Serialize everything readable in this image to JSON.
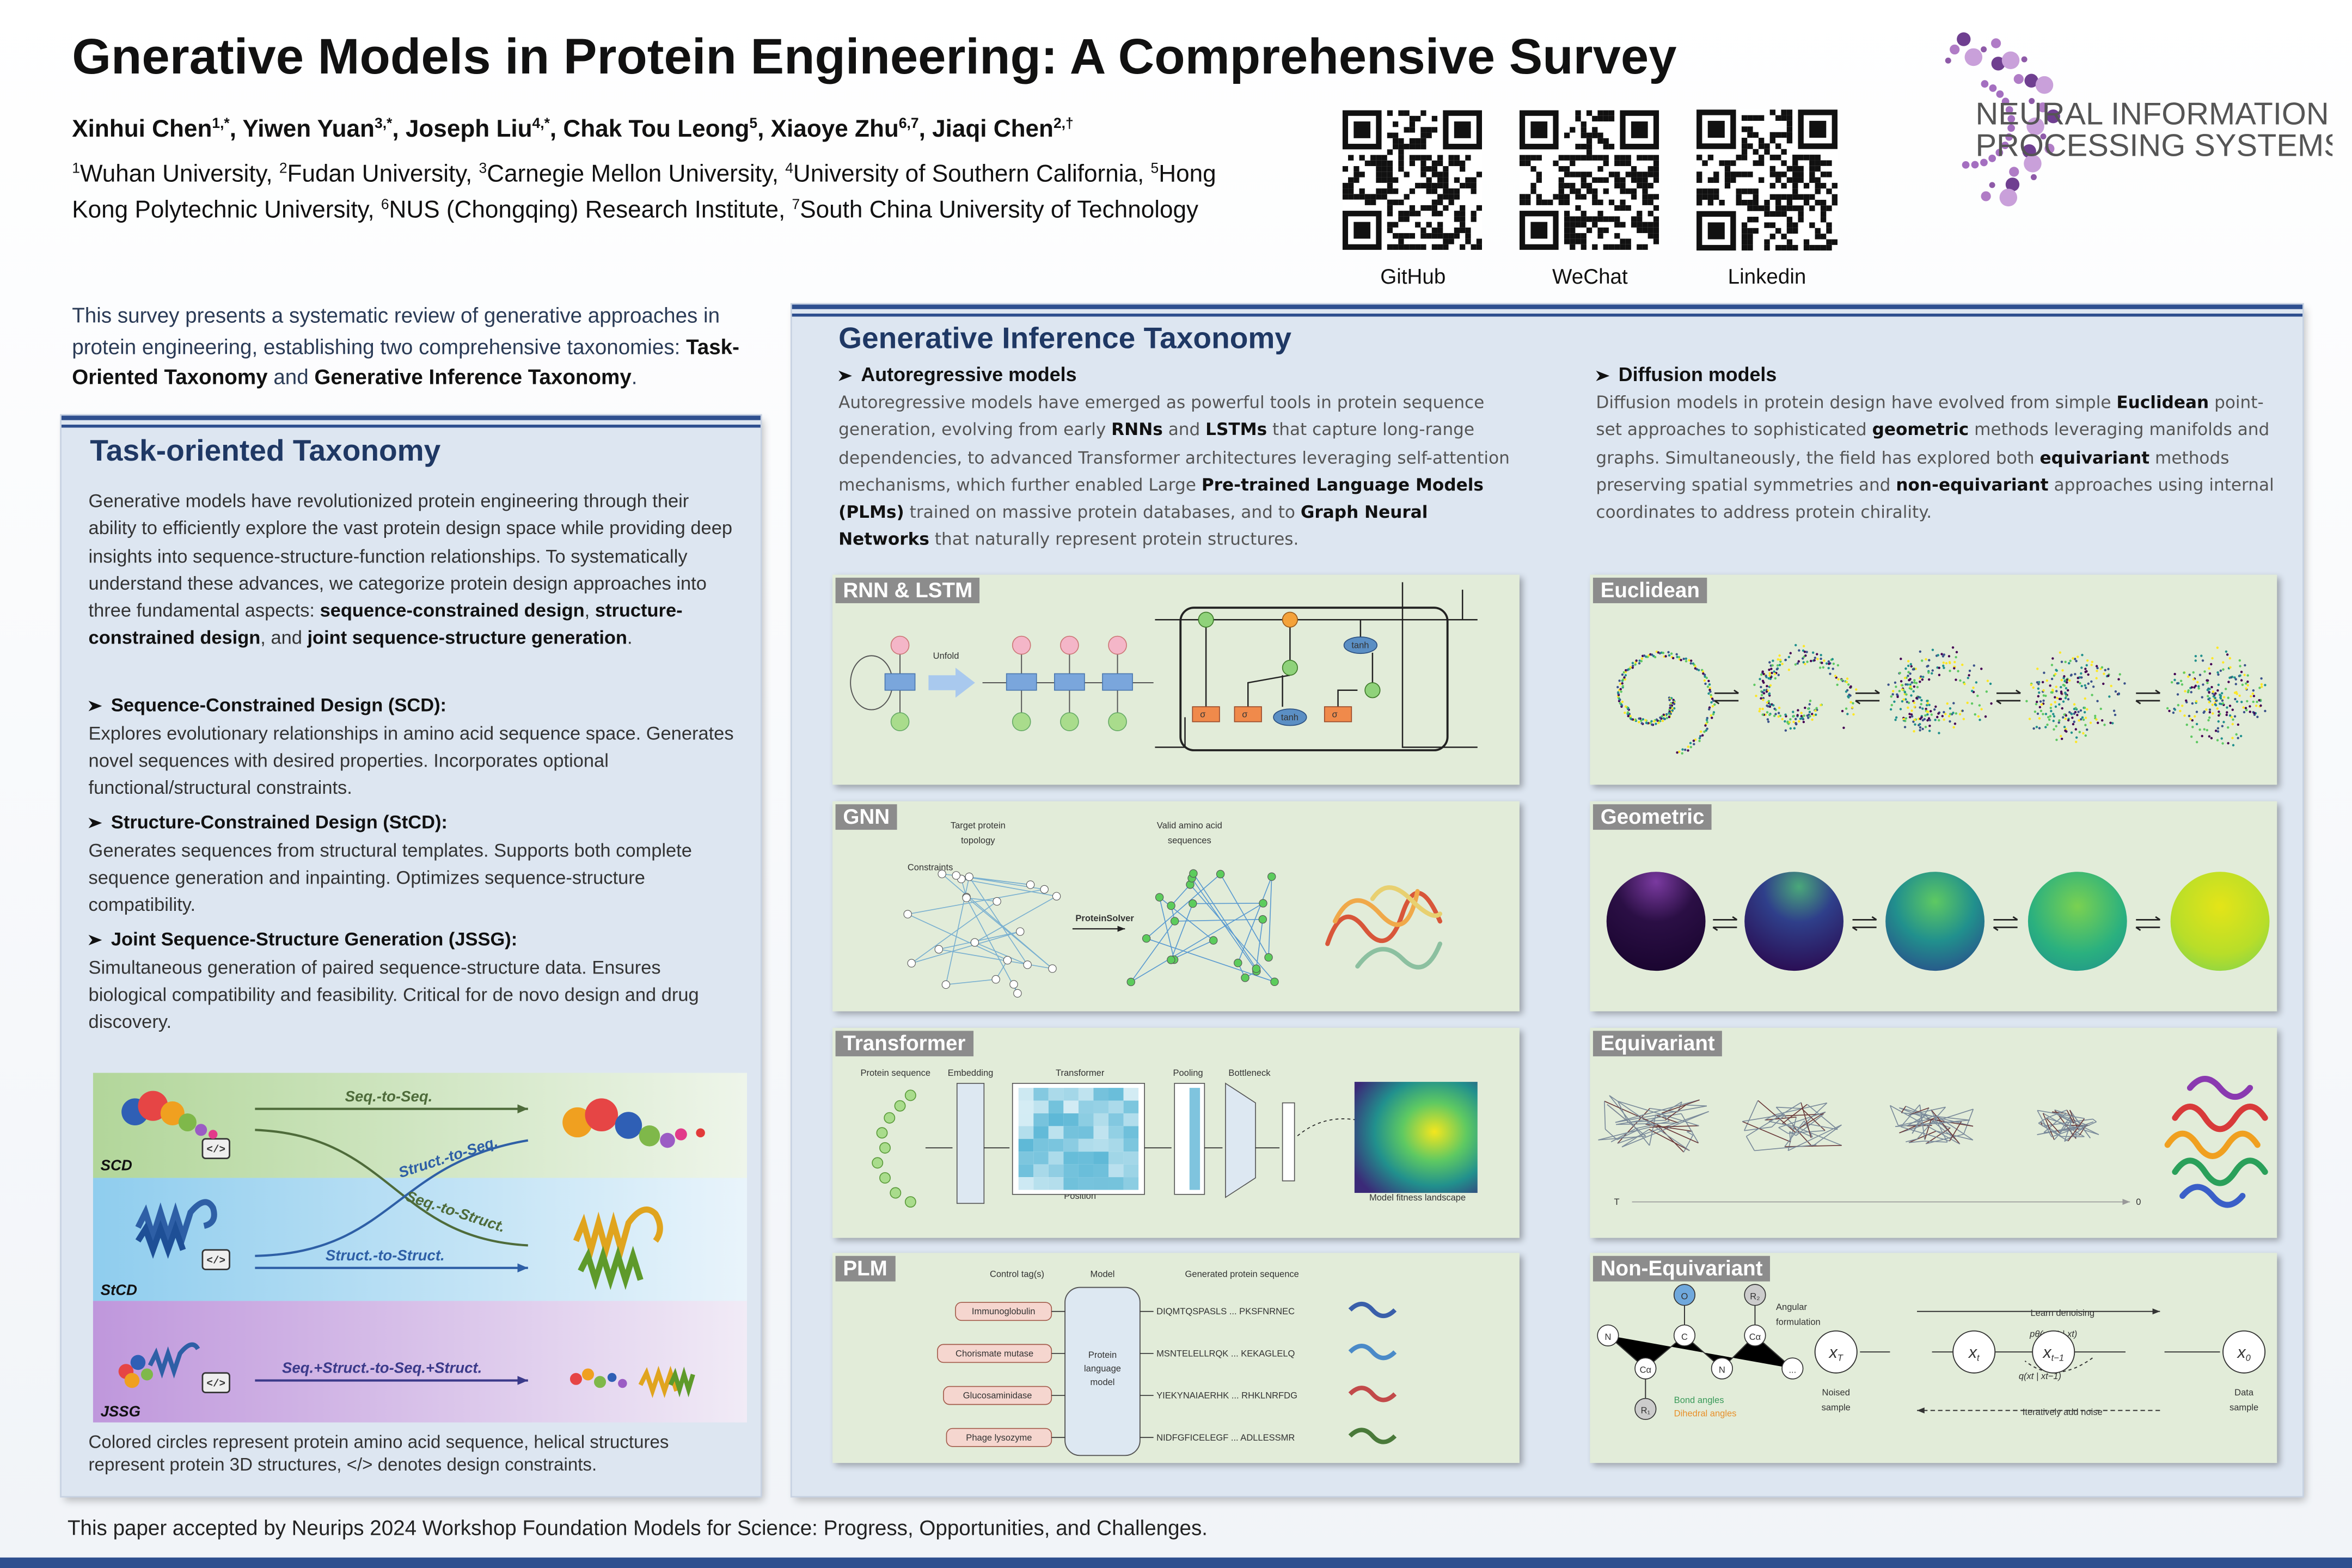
{
  "header": {
    "title": "Gnerative Models in Protein Engineering: A Comprehensive Survey",
    "authors": [
      {
        "t": "Xinhui Chen"
      },
      {
        "t": "1,*",
        "sup": true
      },
      {
        "t": ", Yiwen Yuan"
      },
      {
        "t": "3,*",
        "sup": true
      },
      {
        "t": ", Joseph Liu"
      },
      {
        "t": "4,*",
        "sup": true
      },
      {
        "t": ", Chak Tou Leong"
      },
      {
        "t": "5",
        "sup": true
      },
      {
        "t": ", Xiaoye Zhu"
      },
      {
        "t": "6,7",
        "sup": true
      },
      {
        "t": ", Jiaqi Chen"
      },
      {
        "t": "2,†",
        "sup": true
      }
    ],
    "affiliations": [
      {
        "t": "1",
        "sup": true
      },
      {
        "t": "Wuhan University, "
      },
      {
        "t": "2",
        "sup": true
      },
      {
        "t": "Fudan University, "
      },
      {
        "t": "3",
        "sup": true
      },
      {
        "t": "Carnegie Mellon University, "
      },
      {
        "t": "4",
        "sup": true
      },
      {
        "t": "University of Southern California, "
      },
      {
        "t": "5",
        "sup": true
      },
      {
        "t": "Hong Kong Polytechnic University, "
      },
      {
        "t": "6",
        "sup": true
      },
      {
        "t": "NUS (Chongqing) Research Institute, "
      },
      {
        "t": "7",
        "sup": true
      },
      {
        "t": "South China University of Technology"
      }
    ]
  },
  "qr_codes": [
    {
      "label": "GitHub"
    },
    {
      "label": "WeChat"
    },
    {
      "label": "Linkedin"
    }
  ],
  "logo": {
    "line1": "NEURAL INFORMATION",
    "line2": "PROCESSING SYSTEMS"
  },
  "intro": [
    {
      "t": "This survey presents a systematic review of generative approaches in protein engineering, establishing two comprehensive taxonomies: "
    },
    {
      "t": "Task-Oriented Taxonomy",
      "b": true
    },
    {
      "t": " and "
    },
    {
      "t": "Generative Inference Taxonomy",
      "b": true
    },
    {
      "t": "."
    }
  ],
  "task_panel": {
    "title": "Task-oriented Taxonomy",
    "body": [
      {
        "t": "Generative models have revolutionized protein engineering through their ability to efficiently explore the vast protein design space while providing deep insights into sequence-structure-function relationships. To systematically understand these advances, we categorize protein design approaches into three fundamental aspects: "
      },
      {
        "t": "sequence-constrained design",
        "b": true
      },
      {
        "t": ", "
      },
      {
        "t": "structure-constrained design",
        "b": true
      },
      {
        "t": ", and "
      },
      {
        "t": "joint sequence-structure generation",
        "b": true
      },
      {
        "t": "."
      }
    ],
    "items": [
      {
        "heading": "Sequence-Constrained Design (SCD):",
        "text": "Explores evolutionary relationships in amino acid sequence space. Generates novel sequences with desired properties. Incorporates optional functional/structural constraints."
      },
      {
        "heading": "Structure-Constrained Design (StCD):",
        "text": "Generates sequences from structural templates. Supports both complete sequence generation and inpainting. Optimizes sequence-structure compatibility."
      },
      {
        "heading": "Joint Sequence-Structure Generation (JSSG):",
        "text": "Simultaneous generation of paired sequence-structure data. Ensures biological compatibility and feasibility. Critical for de novo design and drug discovery."
      }
    ],
    "figure": {
      "rows": [
        "SCD",
        "StCD",
        "JSSG"
      ],
      "icon": "</>",
      "arrows": [
        "Seq.-to-Seq.",
        "Struct.-to-Seq.",
        "Seq.-to-Struct.",
        "Struct.-to-Struct.",
        "Seq.+Struct.-to-Seq.+Struct."
      ]
    },
    "caption": "Colored circles represent protein amino acid sequence, helical structures represent protein 3D structures, </> denotes design constraints."
  },
  "inference_panel": {
    "title": "Generative Inference Taxonomy",
    "columns": [
      {
        "heading": "Autoregressive models",
        "body": [
          {
            "t": "Autoregressive models have emerged as powerful tools in protein sequence generation, evolving from early "
          },
          {
            "t": "RNNs",
            "b": true
          },
          {
            "t": " and "
          },
          {
            "t": "LSTMs",
            "b": true
          },
          {
            "t": " that capture long-range dependencies, to advanced Transformer architectures leveraging self-attention mechanisms, which further enabled Large "
          },
          {
            "t": "Pre-trained Language Models (PLMs)",
            "b": true
          },
          {
            "t": " trained on massive protein databases, and to "
          },
          {
            "t": "Graph Neural Networks",
            "b": true
          },
          {
            "t": " that naturally represent protein structures."
          }
        ]
      },
      {
        "heading": "Diffusion models",
        "body": [
          {
            "t": "Diffusion models in protein design have evolved from simple "
          },
          {
            "t": "Euclidean",
            "b": true
          },
          {
            "t": " point-set approaches to sophisticated "
          },
          {
            "t": "geometric",
            "b": true
          },
          {
            "t": " methods leveraging manifolds and graphs. Simultaneously, the field has explored both "
          },
          {
            "t": "equivariant",
            "b": true
          },
          {
            "t": " methods preserving spatial symmetries and "
          },
          {
            "t": "non-equivariant",
            "b": true
          },
          {
            "t": " approaches using internal coordinates to address protein chirality."
          }
        ]
      }
    ],
    "panels": [
      {
        "title": "RNN & LSTM",
        "labels": [
          "Unfold",
          "tanh",
          "σ"
        ]
      },
      {
        "title": "GNN",
        "labels": [
          "Target protein",
          "topology",
          "Valid amino acid",
          "sequences",
          "Constraints",
          "ProteinSolver"
        ]
      },
      {
        "title": "Transformer",
        "labels": [
          "Protein sequence",
          "Embedding",
          "Transformer",
          "Pooling",
          "Bottleneck",
          "Position",
          "Model fitness landscape"
        ]
      },
      {
        "title": "PLM",
        "labels": [
          "Control tag(s)",
          "Model",
          "Generated protein sequence",
          "Immunoglobulin",
          "Chorismate mutase",
          "Glucosaminidase",
          "Phage lysozyme",
          "Protein",
          "language",
          "model",
          "DIQMTQSPASLS ... PKSFNRNEC",
          "MSNTELELLRQK ... KEKAGLELQ",
          "YIEKYNAIAERHK ... RHKLNRFDG",
          "NIDFGFICELEGF ... ADLLESSMR"
        ]
      },
      {
        "title": "Euclidean"
      },
      {
        "title": "Geometric"
      },
      {
        "title": "Equivariant",
        "labels": [
          "T",
          "0"
        ]
      },
      {
        "title": "Non-Equivariant",
        "labels": [
          "O",
          "R₂",
          "N",
          "Cα",
          "C",
          "N",
          "Cα",
          "R₁",
          "...",
          "Angular",
          "formulation",
          "Bond angles",
          "Dihedral angles",
          "Noised",
          "sample",
          "Data",
          "sample",
          "Learn denoising",
          "Iteratively add noise",
          "pθ(xt−1 | xt)",
          "q(xt | xt−1)"
        ],
        "nodes": [
          {
            "base": "x",
            "sub": "T"
          },
          {
            "base": "x",
            "sub": "t"
          },
          {
            "base": "x",
            "sub": "t−1"
          },
          {
            "base": "x",
            "sub": "0"
          }
        ]
      }
    ]
  },
  "footer": "This paper accepted by Neurips 2024 Workshop Foundation Models for Science: Progress, Opportunities, and Challenges."
}
